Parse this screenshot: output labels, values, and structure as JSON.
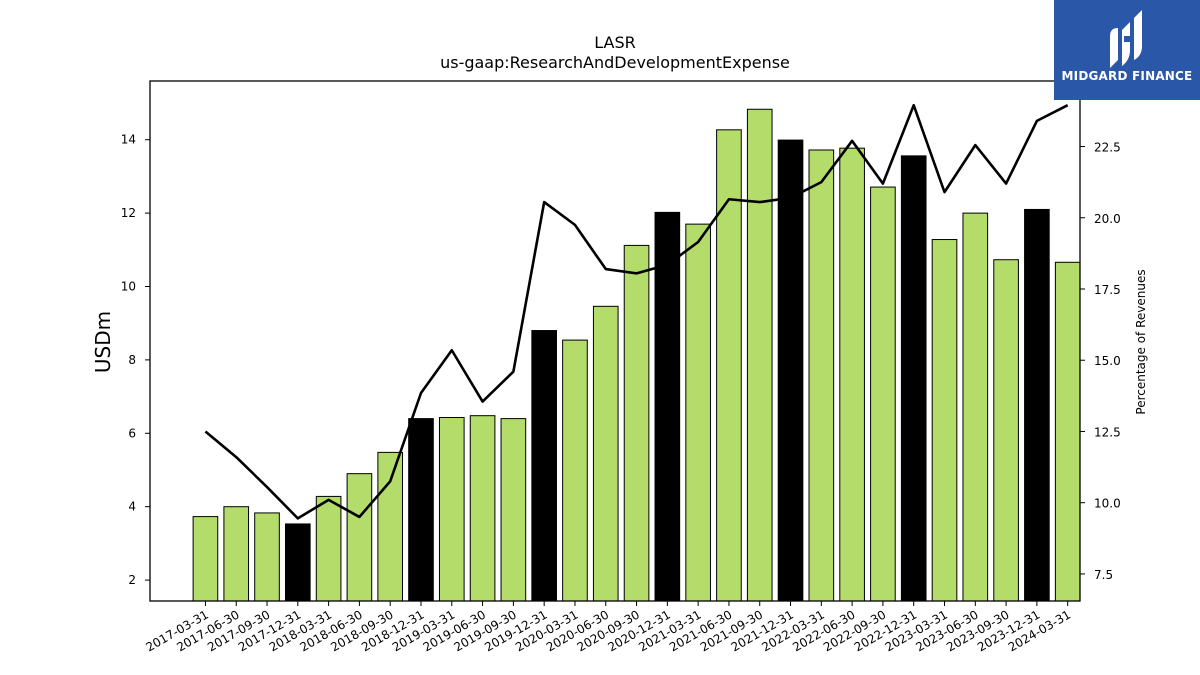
{
  "brand": {
    "name": "MIDGARD FINANCE",
    "background": "#2b57a8"
  },
  "chart_data": {
    "type": "bar",
    "title": "LASR",
    "subtitle": "us-gaap:ResearchAndDevelopmentExpense",
    "ylabel": "USDm",
    "y2label": "Percentage of Revenues",
    "categories": [
      "2017-03-31",
      "2017-06-30",
      "2017-09-30",
      "2017-12-31",
      "2018-03-31",
      "2018-06-30",
      "2018-09-30",
      "2018-12-31",
      "2019-03-31",
      "2019-06-30",
      "2019-09-30",
      "2019-12-31",
      "2020-03-31",
      "2020-06-30",
      "2020-09-30",
      "2020-12-31",
      "2021-03-31",
      "2021-06-30",
      "2021-09-30",
      "2021-12-31",
      "2022-03-31",
      "2022-06-30",
      "2022-09-30",
      "2022-12-31",
      "2023-03-31",
      "2023-06-30",
      "2023-09-30",
      "2023-12-31",
      "2024-03-31"
    ],
    "series": [
      {
        "axis": "left",
        "kind": "bar",
        "values": [
          3.73,
          4.0,
          3.83,
          3.53,
          4.28,
          4.9,
          5.48,
          6.4,
          6.43,
          6.48,
          6.4,
          8.8,
          8.54,
          9.46,
          11.12,
          12.02,
          11.7,
          14.27,
          14.83,
          13.99,
          13.72,
          13.77,
          12.71,
          13.56,
          11.28,
          12.0,
          10.73,
          12.1,
          10.66
        ],
        "colors": [
          "#b4dc6a",
          "#b4dc6a",
          "#b4dc6a",
          "#000000",
          "#b4dc6a",
          "#b4dc6a",
          "#b4dc6a",
          "#000000",
          "#b4dc6a",
          "#b4dc6a",
          "#b4dc6a",
          "#000000",
          "#b4dc6a",
          "#b4dc6a",
          "#b4dc6a",
          "#000000",
          "#b4dc6a",
          "#b4dc6a",
          "#b4dc6a",
          "#000000",
          "#b4dc6a",
          "#b4dc6a",
          "#b4dc6a",
          "#000000",
          "#b4dc6a",
          "#b4dc6a",
          "#b4dc6a",
          "#000000",
          "#b4dc6a"
        ]
      },
      {
        "axis": "right",
        "kind": "line",
        "color": "#000000",
        "values": [
          12.5,
          11.6,
          10.55,
          9.45,
          10.1,
          9.5,
          10.75,
          13.85,
          15.35,
          13.55,
          14.6,
          20.55,
          19.75,
          18.2,
          18.05,
          18.35,
          19.15,
          20.65,
          20.55,
          20.7,
          21.25,
          22.7,
          21.2,
          23.95,
          20.9,
          22.55,
          21.2,
          23.4,
          23.95
        ]
      }
    ],
    "ylim": [
      1.43,
      15.6
    ],
    "y2lim": [
      6.55,
      24.8
    ],
    "yticks": [
      2,
      4,
      6,
      8,
      10,
      12,
      14
    ],
    "y2ticks": [
      7.5,
      10.0,
      12.5,
      15.0,
      17.5,
      20.0,
      22.5
    ],
    "y2tick_labels": [
      "7.5",
      "10.0",
      "12.5",
      "15.0",
      "17.5",
      "20.0",
      "22.5"
    ],
    "grid": false,
    "legend": "none"
  }
}
